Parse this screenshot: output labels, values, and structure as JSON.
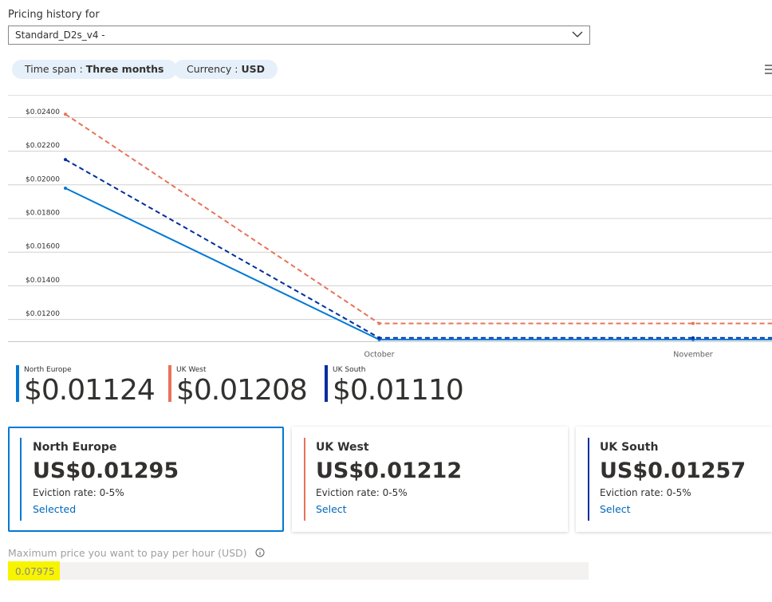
{
  "header": {
    "label": "Pricing history for",
    "selection": "Standard_D2s_v4 -"
  },
  "filters": [
    {
      "label": "Time span :",
      "value": "Three months"
    },
    {
      "label": "Currency :",
      "value": "USD"
    }
  ],
  "chart_data": {
    "type": "line",
    "categories": [
      null,
      "October",
      "November",
      null
    ],
    "series": [
      {
        "name": "North Europe",
        "color": "#0078d4",
        "style": "solid",
        "values": [
          0.0198,
          0.0108,
          0.0108,
          0.0108
        ]
      },
      {
        "name": "UK West",
        "color": "#e8735a",
        "style": "dashed",
        "values": [
          0.0242,
          0.01176,
          0.01176,
          0.01176
        ]
      },
      {
        "name": "UK South",
        "color": "#002e9c",
        "style": "dashed",
        "values": [
          0.0215,
          0.0109,
          0.0109,
          0.0109
        ]
      }
    ],
    "ylim": [
      0.0107,
      0.0253
    ],
    "yticks": [
      {
        "value": 0.012,
        "label": "$0.01200"
      },
      {
        "value": 0.014,
        "label": "$0.01400"
      },
      {
        "value": 0.016,
        "label": "$0.01600"
      },
      {
        "value": 0.018,
        "label": "$0.01800"
      },
      {
        "value": 0.02,
        "label": "$0.02000"
      },
      {
        "value": 0.022,
        "label": "$0.02200"
      },
      {
        "value": 0.024,
        "label": "$0.02400"
      }
    ],
    "grid": true
  },
  "legend_prices": [
    "$0.01124",
    "$0.01208",
    "$0.01110"
  ],
  "cards": [
    {
      "name": "North Europe",
      "price": "US$0.01295",
      "eviction": "Eviction rate: 0-5%",
      "action": "Selected"
    },
    {
      "name": "UK West",
      "price": "US$0.01212",
      "eviction": "Eviction rate: 0-5%",
      "action": "Select"
    },
    {
      "name": "UK South",
      "price": "US$0.01257",
      "eviction": "Eviction rate: 0-5%",
      "action": "Select"
    }
  ],
  "max_price": {
    "label": "Maximum price you want to pay per hour (USD)",
    "value": "0.07975"
  }
}
